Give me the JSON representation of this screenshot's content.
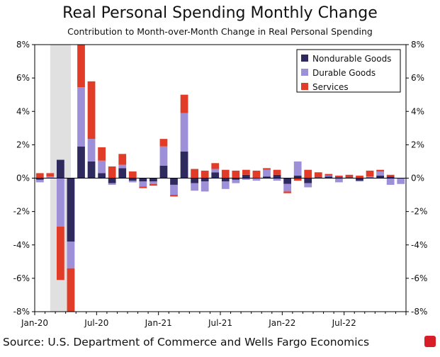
{
  "chart_data": {
    "type": "bar",
    "stacked": true,
    "title": "Real Personal Spending Monthly Change",
    "subtitle": "Contribution to Month-over-Month Change in Real Personal Spending",
    "source": "Source: U.S. Department of Commerce and Wells Fargo Economics",
    "ylim": [
      -8,
      8
    ],
    "yticks": [
      -8,
      -6,
      -4,
      -2,
      0,
      2,
      4,
      6,
      8
    ],
    "ytick_labels": [
      "-8%",
      "-6%",
      "-4%",
      "-2%",
      "0%",
      "2%",
      "4%",
      "6%",
      "8%"
    ],
    "x_tick_labels": [
      {
        "index": 0,
        "label": "Jan-20"
      },
      {
        "index": 6,
        "label": "Jul-20"
      },
      {
        "index": 12,
        "label": "Jan-21"
      },
      {
        "index": 18,
        "label": "Jul-21"
      },
      {
        "index": 24,
        "label": "Jan-22"
      },
      {
        "index": 30,
        "label": "Jul-22"
      }
    ],
    "recession_shading": {
      "start_index": 1.5,
      "end_index": 3.5,
      "color": "#e0e0e0"
    },
    "legend_position": "top-right",
    "categories": [
      "Jan-20",
      "Feb-20",
      "Mar-20",
      "Apr-20",
      "May-20",
      "Jun-20",
      "Jul-20",
      "Aug-20",
      "Sep-20",
      "Oct-20",
      "Nov-20",
      "Dec-20",
      "Jan-21",
      "Feb-21",
      "Mar-21",
      "Apr-21",
      "May-21",
      "Jun-21",
      "Jul-21",
      "Aug-21",
      "Sep-21",
      "Oct-21",
      "Nov-21",
      "Dec-21",
      "Jan-22",
      "Feb-22",
      "Mar-22",
      "Apr-22",
      "May-22",
      "Jun-22",
      "Jul-22",
      "Aug-22",
      "Sep-22",
      "Oct-22",
      "Nov-22",
      "Dec-22"
    ],
    "series": [
      {
        "name": "Nondurable Goods",
        "color": "#2e2a5e",
        "values": [
          -0.1,
          0.0,
          1.1,
          -3.8,
          1.9,
          1.0,
          0.3,
          -0.3,
          0.6,
          -0.15,
          -0.2,
          -0.2,
          0.75,
          -0.4,
          1.6,
          -0.3,
          -0.2,
          0.35,
          -0.2,
          -0.1,
          0.2,
          0.0,
          0.1,
          0.2,
          -0.35,
          0.15,
          -0.3,
          0.05,
          0.1,
          0.05,
          0.05,
          -0.15,
          0.05,
          0.15,
          0.1,
          0.0
        ]
      },
      {
        "name": "Durable Goods",
        "color": "#9e8fd9",
        "values": [
          -0.15,
          0.1,
          -2.9,
          -1.6,
          3.55,
          1.35,
          0.75,
          -0.1,
          0.2,
          -0.1,
          -0.3,
          -0.15,
          1.15,
          -0.6,
          2.3,
          -0.45,
          -0.6,
          0.2,
          -0.45,
          -0.2,
          -0.1,
          -0.15,
          0.4,
          -0.15,
          -0.45,
          0.85,
          -0.25,
          0.0,
          0.05,
          -0.25,
          0.0,
          -0.05,
          0.05,
          0.25,
          -0.4,
          -0.35
        ]
      },
      {
        "name": "Services",
        "color": "#e03c28",
        "values": [
          0.3,
          0.2,
          -3.2,
          -2.6,
          2.7,
          3.45,
          0.8,
          0.7,
          0.65,
          0.4,
          -0.1,
          -0.1,
          0.45,
          -0.1,
          1.1,
          0.55,
          0.45,
          0.35,
          0.5,
          0.45,
          0.3,
          0.45,
          0.1,
          0.3,
          -0.1,
          -0.15,
          0.5,
          0.3,
          0.1,
          0.1,
          0.15,
          0.15,
          0.35,
          0.1,
          0.1,
          0.0
        ]
      }
    ]
  }
}
